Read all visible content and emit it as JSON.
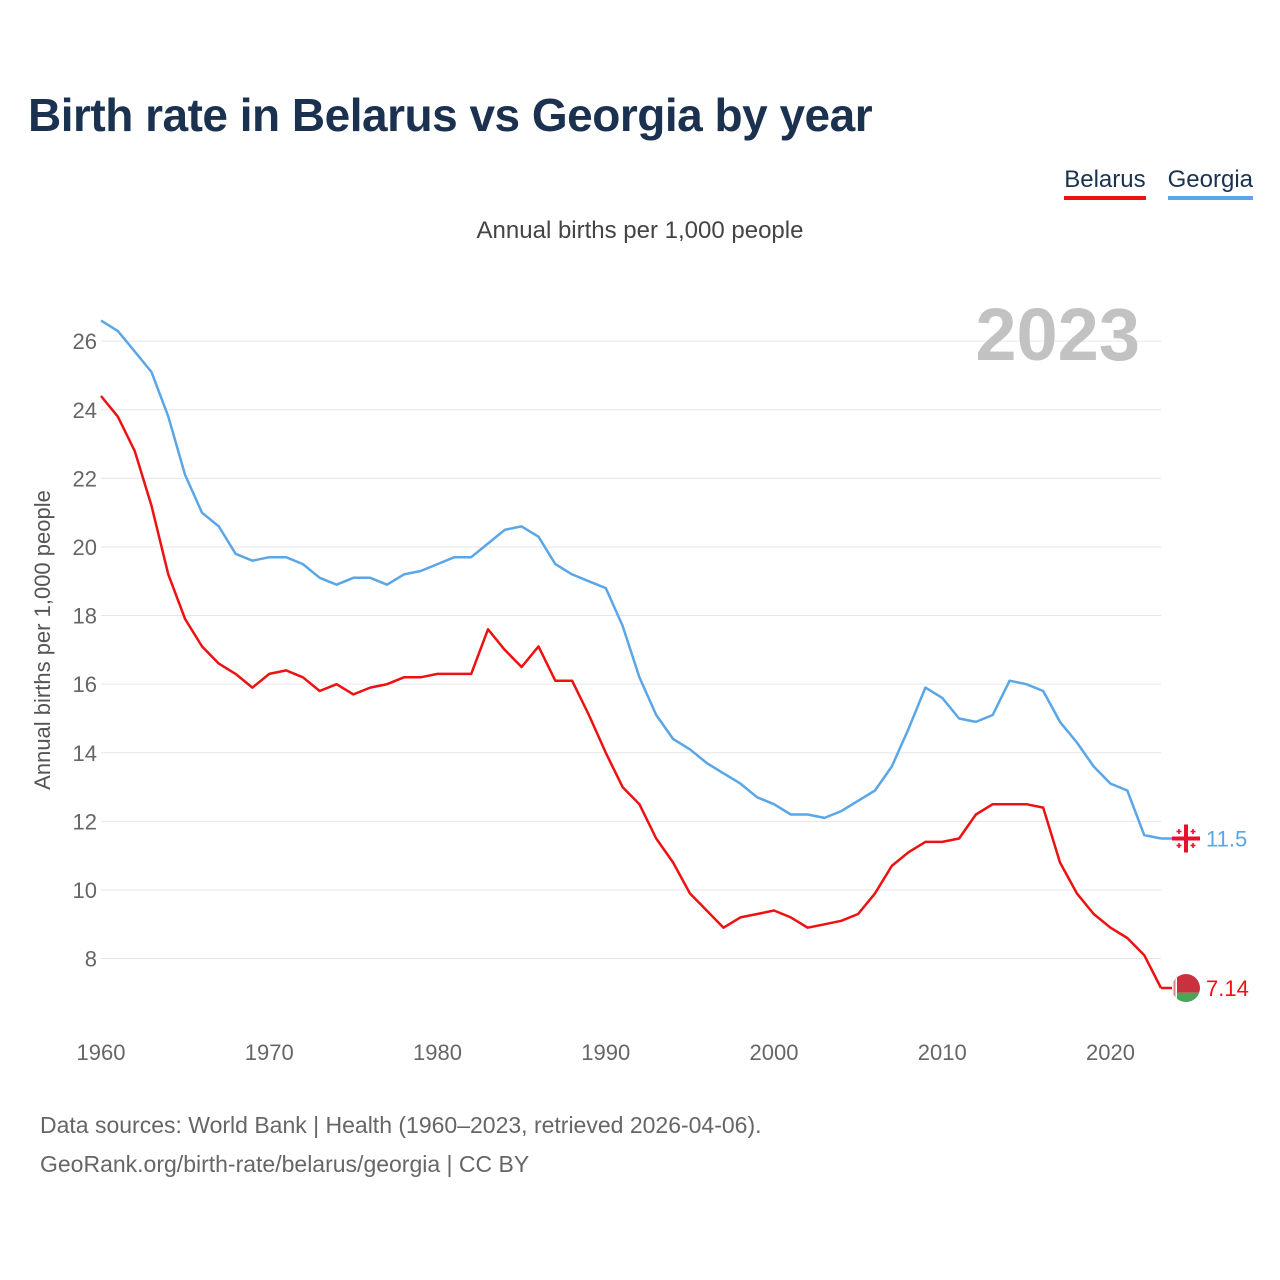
{
  "header": {
    "title": "Birth rate in Belarus vs Georgia by year",
    "subtitle": "Annual births per 1,000 people"
  },
  "legend": [
    {
      "label": "Belarus",
      "color": "#ee1111"
    },
    {
      "label": "Georgia",
      "color": "#5aa6e6"
    }
  ],
  "footer": {
    "line1": "Data sources: World Bank | Health (1960–2023, retrieved 2026-04-06).",
    "line2": "GeoRank.org/birth-rate/belarus/georgia | CC BY"
  },
  "chart_data": {
    "type": "line",
    "title": "Birth rate in Belarus vs Georgia by year",
    "ylabel": "Annual births per 1,000 people",
    "xlabel": "",
    "year_marker": "2023",
    "xlim": [
      1960,
      2023
    ],
    "ylim": [
      6.5,
      27.2
    ],
    "x_ticks": [
      1960,
      1970,
      1980,
      1990,
      2000,
      2010,
      2020
    ],
    "y_ticks": [
      8,
      10,
      12,
      14,
      16,
      18,
      20,
      22,
      24,
      26
    ],
    "grid": true,
    "x": [
      1960,
      1961,
      1962,
      1963,
      1964,
      1965,
      1966,
      1967,
      1968,
      1969,
      1970,
      1971,
      1972,
      1973,
      1974,
      1975,
      1976,
      1977,
      1978,
      1979,
      1980,
      1981,
      1982,
      1983,
      1984,
      1985,
      1986,
      1987,
      1988,
      1989,
      1990,
      1991,
      1992,
      1993,
      1994,
      1995,
      1996,
      1997,
      1998,
      1999,
      2000,
      2001,
      2002,
      2003,
      2004,
      2005,
      2006,
      2007,
      2008,
      2009,
      2010,
      2011,
      2012,
      2013,
      2014,
      2015,
      2016,
      2017,
      2018,
      2019,
      2020,
      2021,
      2022,
      2023
    ],
    "series": [
      {
        "name": "Belarus",
        "color": "#ee1111",
        "end_label": "7.14",
        "flag_icon": "belarus-flag-icon",
        "values": [
          24.4,
          23.8,
          22.8,
          21.2,
          19.2,
          17.9,
          17.1,
          16.6,
          16.3,
          15.9,
          16.3,
          16.4,
          16.2,
          15.8,
          16.0,
          15.7,
          15.9,
          16.0,
          16.2,
          16.2,
          16.3,
          16.3,
          16.3,
          17.6,
          17.0,
          16.5,
          17.1,
          16.1,
          16.1,
          15.1,
          14.0,
          13.0,
          12.5,
          11.5,
          10.8,
          9.9,
          9.4,
          8.9,
          9.2,
          9.3,
          9.4,
          9.2,
          8.9,
          9.0,
          9.1,
          9.3,
          9.9,
          10.7,
          11.1,
          11.4,
          11.4,
          11.5,
          12.2,
          12.5,
          12.5,
          12.5,
          12.4,
          10.8,
          9.9,
          9.3,
          8.9,
          8.6,
          8.1,
          7.14
        ]
      },
      {
        "name": "Georgia",
        "color": "#5aa6e6",
        "end_label": "11.5",
        "flag_icon": "georgia-flag-icon",
        "values": [
          26.6,
          26.3,
          25.7,
          25.1,
          23.8,
          22.1,
          21.0,
          20.6,
          19.8,
          19.6,
          19.7,
          19.7,
          19.5,
          19.1,
          18.9,
          19.1,
          19.1,
          18.9,
          19.2,
          19.3,
          19.5,
          19.7,
          19.7,
          20.1,
          20.5,
          20.6,
          20.3,
          19.5,
          19.2,
          19.0,
          18.8,
          17.7,
          16.2,
          15.1,
          14.4,
          14.1,
          13.7,
          13.4,
          13.1,
          12.7,
          12.5,
          12.2,
          12.2,
          12.1,
          12.3,
          12.6,
          12.9,
          13.6,
          14.7,
          15.9,
          15.6,
          15.0,
          14.9,
          15.1,
          16.1,
          16.0,
          15.8,
          14.9,
          14.3,
          13.6,
          13.1,
          12.9,
          11.6,
          11.5
        ]
      }
    ]
  }
}
